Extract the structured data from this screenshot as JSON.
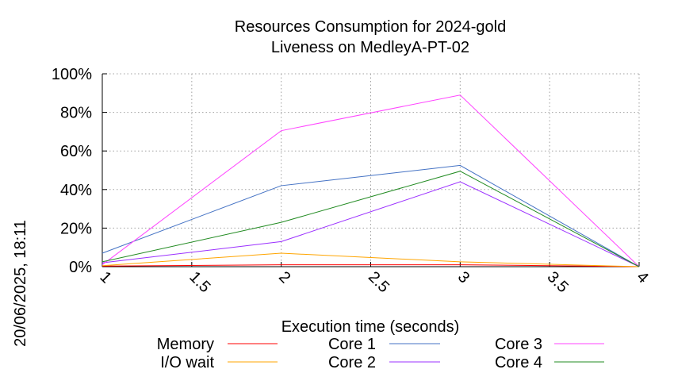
{
  "chart_data": {
    "type": "line",
    "title_line1": "Resources Consumption for 2024-gold",
    "title_line2": "Liveness on MedleyA-PT-02",
    "xlabel": "Execution time (seconds)",
    "ylabel": "",
    "side_label": "20/06/2025, 18:11",
    "x": [
      1,
      2,
      3,
      4
    ],
    "xlim": [
      1,
      4
    ],
    "ylim": [
      0,
      100
    ],
    "x_ticks": [
      "1",
      "1.5",
      "2",
      "2.5",
      "3",
      "3.5",
      "4"
    ],
    "x_tick_values": [
      1,
      1.5,
      2,
      2.5,
      3,
      3.5,
      4
    ],
    "y_ticks": [
      "0%",
      "20%",
      "40%",
      "60%",
      "80%",
      "100%"
    ],
    "y_tick_values": [
      0,
      20,
      40,
      60,
      80,
      100
    ],
    "grid": true,
    "series": [
      {
        "name": "Memory",
        "color": "#ff0000",
        "values": [
          0.3,
          1,
          1,
          0
        ]
      },
      {
        "name": "I/O wait",
        "color": "#ffa500",
        "values": [
          0.5,
          7,
          2.5,
          0
        ]
      },
      {
        "name": "Core 1",
        "color": "#4472c4",
        "values": [
          7,
          42,
          52.5,
          0
        ]
      },
      {
        "name": "Core 2",
        "color": "#9b30ff",
        "values": [
          2,
          13,
          44,
          0
        ]
      },
      {
        "name": "Core 3",
        "color": "#ff44ff",
        "values": [
          1,
          70.5,
          89,
          0
        ]
      },
      {
        "name": "Core 4",
        "color": "#228b22",
        "values": [
          2.5,
          23,
          49.5,
          0
        ]
      }
    ]
  }
}
